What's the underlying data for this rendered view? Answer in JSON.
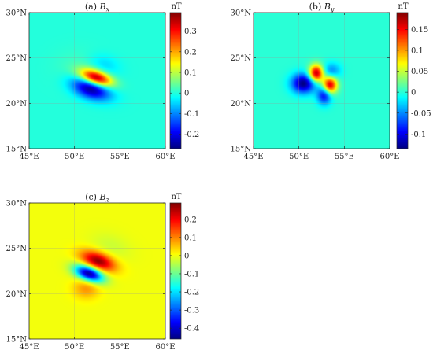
{
  "chart_data": [
    {
      "type": "heatmap",
      "panel": "a",
      "title_prefix": "(a) ",
      "title_var": "B",
      "title_sub": "x",
      "colormap": "jet",
      "xlim": [
        45,
        60
      ],
      "ylim": [
        15,
        30
      ],
      "grid": true,
      "xticks": [
        45,
        50,
        55,
        60
      ],
      "xtick_labels": [
        "45°E",
        "50°E",
        "55°E",
        "60°E"
      ],
      "yticks": [
        15,
        20,
        25,
        30
      ],
      "ytick_labels": [
        "15°N",
        "20°N",
        "25°N",
        "30°N"
      ],
      "colorbar": {
        "label": "nT",
        "clim": [
          -0.27,
          0.39
        ],
        "ticks": [
          -0.2,
          -0.1,
          0,
          0.1,
          0.2,
          0.3
        ],
        "tick_labels": [
          "-0.2",
          "-0.1",
          "0",
          "0.1",
          "0.2",
          "0.3"
        ]
      },
      "features": [
        {
          "kind": "gaussian",
          "lon": 52.4,
          "lat": 22.8,
          "amp": 0.38,
          "sx": 1.25,
          "sy": 0.55,
          "angle": -18
        },
        {
          "kind": "gaussian",
          "lon": 51.8,
          "lat": 21.6,
          "amp": -0.26,
          "sx": 1.5,
          "sy": 0.75,
          "angle": -18
        },
        {
          "kind": "gaussian",
          "lon": 53.3,
          "lat": 24.2,
          "amp": -0.05,
          "sx": 1.2,
          "sy": 0.8,
          "angle": -18
        },
        {
          "kind": "gaussian",
          "lon": 50.6,
          "lat": 23.8,
          "amp": 0.02,
          "sx": 2.0,
          "sy": 1.5,
          "angle": 0
        }
      ]
    },
    {
      "type": "heatmap",
      "panel": "b",
      "title_prefix": "(b) ",
      "title_var": "B",
      "title_sub": "y",
      "colormap": "jet",
      "xlim": [
        45,
        60
      ],
      "ylim": [
        15,
        30
      ],
      "grid": true,
      "xticks": [
        45,
        50,
        55,
        60
      ],
      "xtick_labels": [
        "45°E",
        "50°E",
        "55°E",
        "60°E"
      ],
      "yticks": [
        15,
        20,
        25,
        30
      ],
      "ytick_labels": [
        "15°N",
        "20°N",
        "25°N",
        "30°N"
      ],
      "colorbar": {
        "label": "nT",
        "clim": [
          -0.135,
          0.19
        ],
        "ticks": [
          -0.1,
          -0.05,
          0,
          0.05,
          0.1,
          0.15
        ],
        "tick_labels": [
          "-0.1",
          "-0.05",
          "0",
          "0.05",
          "0.1",
          "0.15"
        ]
      },
      "features": [
        {
          "kind": "gaussian",
          "lon": 51.9,
          "lat": 23.3,
          "amp": 0.18,
          "sx": 0.55,
          "sy": 0.65,
          "angle": 0
        },
        {
          "kind": "gaussian",
          "lon": 53.4,
          "lat": 22.0,
          "amp": 0.17,
          "sx": 0.55,
          "sy": 0.65,
          "angle": 0
        },
        {
          "kind": "gaussian",
          "lon": 50.5,
          "lat": 22.2,
          "amp": -0.135,
          "sx": 0.9,
          "sy": 0.75,
          "angle": 0
        },
        {
          "kind": "gaussian",
          "lon": 52.8,
          "lat": 20.9,
          "amp": -0.1,
          "sx": 0.55,
          "sy": 0.7,
          "angle": 0
        },
        {
          "kind": "gaussian",
          "lon": 53.6,
          "lat": 23.6,
          "amp": -0.05,
          "sx": 0.7,
          "sy": 0.6,
          "angle": 0
        }
      ]
    },
    {
      "type": "heatmap",
      "panel": "c",
      "title_prefix": "(c) ",
      "title_var": "B",
      "title_sub": "z",
      "colormap": "jet",
      "xlim": [
        45,
        60
      ],
      "ylim": [
        15,
        30
      ],
      "grid": true,
      "xticks": [
        45,
        50,
        55,
        60
      ],
      "xtick_labels": [
        "45°E",
        "50°E",
        "55°E",
        "60°E"
      ],
      "yticks": [
        15,
        20,
        25,
        30
      ],
      "ytick_labels": [
        "15°N",
        "20°N",
        "25°N",
        "30°N"
      ],
      "colorbar": {
        "label": "nT",
        "clim": [
          -0.46,
          0.29
        ],
        "ticks": [
          -0.4,
          -0.3,
          -0.2,
          -0.1,
          0,
          0.1,
          0.2
        ],
        "tick_labels": [
          "-0.4",
          "-0.3",
          "-0.2",
          "-0.1",
          "0",
          "0.1",
          "0.2"
        ]
      },
      "features": [
        {
          "kind": "gaussian",
          "lon": 52.6,
          "lat": 23.6,
          "amp": 0.28,
          "sx": 1.35,
          "sy": 0.65,
          "angle": -20
        },
        {
          "kind": "gaussian",
          "lon": 51.6,
          "lat": 22.2,
          "amp": -0.45,
          "sx": 1.15,
          "sy": 0.55,
          "angle": -20
        },
        {
          "kind": "gaussian",
          "lon": 51.3,
          "lat": 20.6,
          "amp": 0.09,
          "sx": 1.0,
          "sy": 0.8,
          "angle": 0
        },
        {
          "kind": "gaussian",
          "lon": 54.0,
          "lat": 25.2,
          "amp": -0.03,
          "sx": 1.6,
          "sy": 1.0,
          "angle": -20
        }
      ]
    }
  ]
}
